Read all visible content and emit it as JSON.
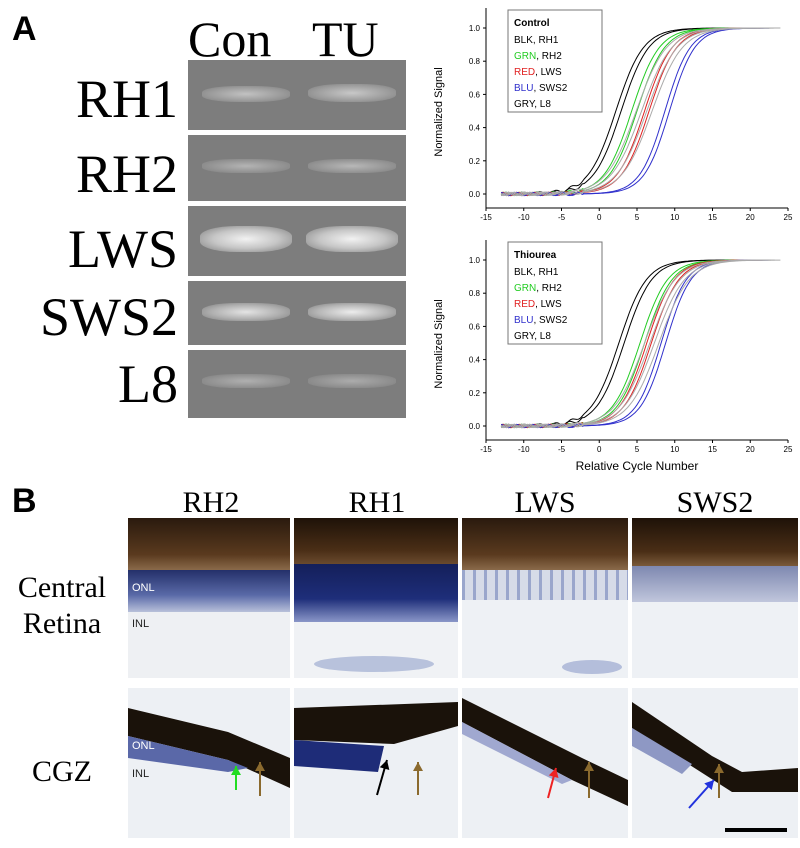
{
  "panel_a": {
    "letter": "A",
    "gel": {
      "headers": [
        "Con",
        "TU"
      ],
      "rows": [
        "RH1",
        "RH2",
        "LWS",
        "SWS2",
        "L8"
      ]
    },
    "charts": [
      {
        "legend_title": "Control",
        "legend": [
          {
            "code": "BLK",
            "gene": ", RH1",
            "color": "#000000"
          },
          {
            "code": "GRN",
            "gene": ", RH2",
            "color": "#22cc22"
          },
          {
            "code": "RED",
            "gene": ", LWS",
            "color": "#e02020"
          },
          {
            "code": "BLU",
            "gene": ", SWS2",
            "color": "#3030cc"
          },
          {
            "code": "GRY",
            "gene": ", L8",
            "color": "#999999"
          }
        ]
      },
      {
        "legend_title": "Thiourea",
        "legend": [
          {
            "code": "BLK",
            "gene": ", RH1",
            "color": "#000000"
          },
          {
            "code": "GRN",
            "gene": ", RH2",
            "color": "#22cc22"
          },
          {
            "code": "RED",
            "gene": ", LWS",
            "color": "#e02020"
          },
          {
            "code": "BLU",
            "gene": ", SWS2",
            "color": "#3030cc"
          },
          {
            "code": "GRY",
            "gene": ", L8",
            "color": "#999999"
          }
        ]
      }
    ]
  },
  "chart_data": [
    {
      "type": "line",
      "legend_title": "Control",
      "ylabel": "Normalized Signal",
      "xlabel": "",
      "xlim": [
        -15,
        25
      ],
      "ylim": [
        0.0,
        1.0
      ],
      "x_ticks": [
        -15,
        -10,
        -5,
        0,
        5,
        10,
        15,
        20,
        25
      ],
      "y_ticks": [
        "0.0",
        "0.2",
        "0.4",
        "0.6",
        "0.8",
        "1.0"
      ],
      "series": [
        {
          "name": "BLK, RH1",
          "color": "#000000",
          "midpoints": [
            2.2,
            2.9
          ],
          "slope": 0.55
        },
        {
          "name": "GRN, RH2",
          "color": "#22cc22",
          "midpoints": [
            4.3,
            5.0
          ],
          "slope": 0.55
        },
        {
          "name": "RED, LWS",
          "color": "#e02020",
          "midpoints": [
            6.0,
            6.6
          ],
          "slope": 0.55
        },
        {
          "name": "BLU, SWS2",
          "color": "#3030cc",
          "midpoints": [
            8.7,
            9.3
          ],
          "slope": 0.6
        },
        {
          "name": "GRY, L8",
          "color": "#aaaaaa",
          "midpoints": [
            4.9,
            5.6,
            6.3,
            7.0
          ],
          "slope": 0.5
        }
      ]
    },
    {
      "type": "line",
      "legend_title": "Thiourea",
      "ylabel": "Normalized Signal",
      "xlabel": "Relative Cycle Number",
      "xlim": [
        -15,
        25
      ],
      "ylim": [
        0.0,
        1.0
      ],
      "x_ticks": [
        -15,
        -10,
        -5,
        0,
        5,
        10,
        15,
        20,
        25
      ],
      "y_ticks": [
        "0.0",
        "0.2",
        "0.4",
        "0.6",
        "0.8",
        "1.0"
      ],
      "series": [
        {
          "name": "BLK, RH1",
          "color": "#000000",
          "midpoints": [
            2.6,
            3.3
          ],
          "slope": 0.55
        },
        {
          "name": "GRN, RH2",
          "color": "#22cc22",
          "midpoints": [
            5.4,
            6.0
          ],
          "slope": 0.55
        },
        {
          "name": "RED, LWS",
          "color": "#e02020",
          "midpoints": [
            6.3,
            6.9
          ],
          "slope": 0.55
        },
        {
          "name": "BLU, SWS2",
          "color": "#3030cc",
          "midpoints": [
            8.2,
            8.8
          ],
          "slope": 0.6
        },
        {
          "name": "GRY, L8",
          "color": "#aaaaaa",
          "midpoints": [
            6.0,
            6.7,
            7.3,
            7.9
          ],
          "slope": 0.5
        }
      ]
    }
  ],
  "panel_b": {
    "letter": "B",
    "columns": [
      "RH2",
      "RH1",
      "LWS",
      "SWS2"
    ],
    "rows": [
      "Central\nRetina",
      "CGZ"
    ],
    "layer_labels": {
      "onl": "ONL",
      "inl": "INL"
    },
    "arrows": [
      {
        "color": "#22dd22"
      },
      {
        "color": "#8b6a2e"
      },
      {
        "color": "#000000"
      },
      {
        "color": "#8b6a2e"
      },
      {
        "color": "#ee2222"
      },
      {
        "color": "#8b6a2e"
      },
      {
        "color": "#2233dd"
      },
      {
        "color": "#8b6a2e"
      }
    ]
  }
}
